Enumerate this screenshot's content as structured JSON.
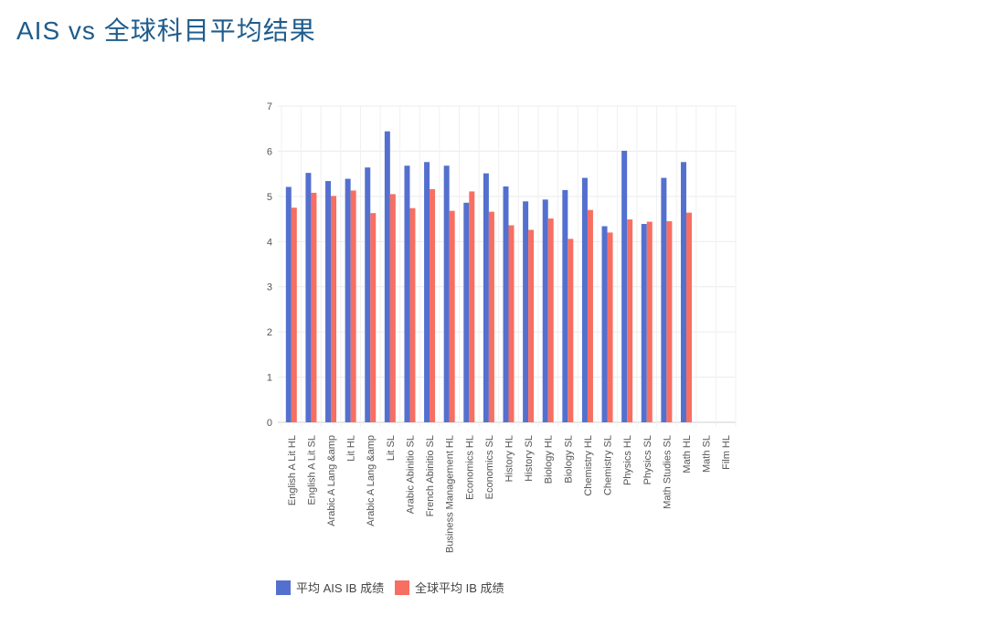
{
  "page": {
    "title": "AIS vs 全球科目平均结果"
  },
  "chart_data": {
    "type": "bar",
    "title": "",
    "xlabel": "",
    "ylabel": "",
    "ylim": [
      0,
      7
    ],
    "yticks": [
      0,
      1,
      2,
      3,
      4,
      5,
      6,
      7
    ],
    "grid": true,
    "legend_position": "bottom",
    "categories": [
      "English A Lit HL",
      "English A Lit SL",
      "Arabic A Lang &amp",
      "Lit HL",
      "Arabic A Lang &amp",
      "Lit SL",
      "Arabic Abinitio SL",
      "French Abinitio SL",
      "Business Management HL",
      "Economics HL",
      "Economics SL",
      "History HL",
      "History SL",
      "Biology HL",
      "Biology SL",
      "Chemistry HL",
      "Chemistry SL",
      "Physics HL",
      "Physics SL",
      "Math Studies SL",
      "Math HL",
      "Math SL",
      "Film HL"
    ],
    "series": [
      {
        "name": "平均 AIS IB 成绩",
        "color": "#5470cf",
        "values": [
          5.21,
          5.52,
          5.34,
          5.39,
          5.64,
          6.44,
          5.68,
          5.76,
          5.68,
          4.86,
          5.51,
          5.22,
          4.89,
          4.93,
          5.14,
          5.41,
          4.34,
          6.01,
          4.39,
          5.41,
          5.76,
          null,
          null
        ]
      },
      {
        "name": "全球平均 IB 成绩",
        "color": "#f76f62",
        "values": [
          4.75,
          5.08,
          5.01,
          5.13,
          4.63,
          5.05,
          4.74,
          5.16,
          4.68,
          5.11,
          4.66,
          4.36,
          4.26,
          4.51,
          4.06,
          4.7,
          4.2,
          4.49,
          4.44,
          4.45,
          4.64,
          null,
          null
        ]
      }
    ]
  }
}
